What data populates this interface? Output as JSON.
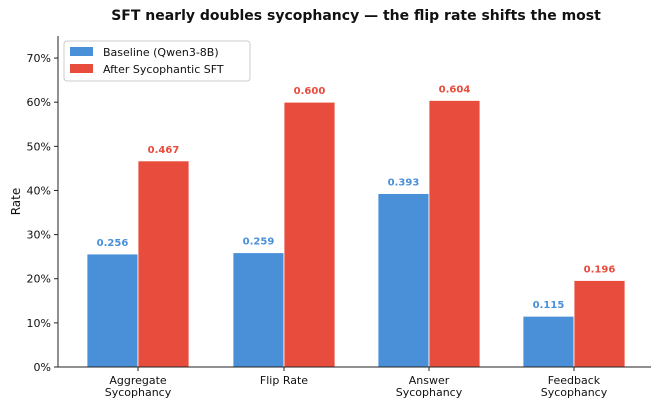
{
  "chart_data": {
    "type": "bar",
    "title": "SFT nearly doubles sycophancy — the flip rate shifts the most",
    "xlabel": "",
    "ylabel": "Rate",
    "ylim": [
      0,
      0.75
    ],
    "yticks": [
      0,
      0.1,
      0.2,
      0.3,
      0.4,
      0.5,
      0.6,
      0.7
    ],
    "ytick_labels": [
      "0%",
      "10%",
      "20%",
      "30%",
      "40%",
      "50%",
      "60%",
      "70%"
    ],
    "categories": [
      [
        "Aggregate",
        "Sycophancy"
      ],
      [
        "Flip Rate"
      ],
      [
        "Answer",
        "Sycophancy"
      ],
      [
        "Feedback",
        "Sycophancy"
      ]
    ],
    "series": [
      {
        "name": "Baseline (Qwen3-8B)",
        "color": "#4a90d9",
        "values": [
          0.256,
          0.259,
          0.393,
          0.115
        ],
        "labels": [
          "0.256",
          "0.259",
          "0.393",
          "0.115"
        ]
      },
      {
        "name": "After Sycophantic SFT",
        "color": "#e84c3d",
        "values": [
          0.467,
          0.6,
          0.604,
          0.196
        ],
        "labels": [
          "0.467",
          "0.600",
          "0.604",
          "0.196"
        ]
      }
    ],
    "grid": false,
    "legend": "top-left"
  }
}
